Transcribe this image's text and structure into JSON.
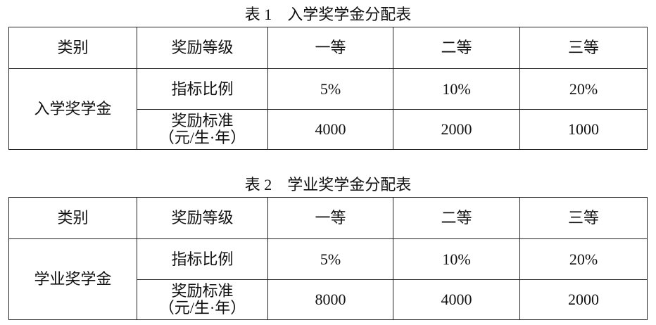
{
  "tables": [
    {
      "caption": "表 1　入学奖学金分配表",
      "header": [
        "类别",
        "奖励等级",
        "一等",
        "二等",
        "三等"
      ],
      "category": "入学奖学金",
      "rows": [
        {
          "label": "指标比例",
          "values": [
            "5%",
            "10%",
            "20%"
          ]
        },
        {
          "label": "奖励标准",
          "label2": "（元/生·年）",
          "values": [
            "4000",
            "2000",
            "1000"
          ]
        }
      ]
    },
    {
      "caption": "表 2　学业奖学金分配表",
      "header": [
        "类别",
        "奖励等级",
        "一等",
        "二等",
        "三等"
      ],
      "category": "学业奖学金",
      "rows": [
        {
          "label": "指标比例",
          "values": [
            "5%",
            "10%",
            "20%"
          ]
        },
        {
          "label": "奖励标准",
          "label2": "（元/生·年）",
          "values": [
            "8000",
            "4000",
            "2000"
          ]
        }
      ]
    }
  ]
}
